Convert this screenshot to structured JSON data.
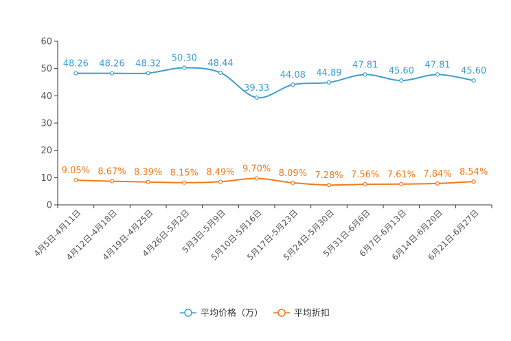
{
  "chart_data": {
    "type": "line",
    "title": "",
    "xlabel": "",
    "ylabel": "",
    "ylim": [
      0,
      60
    ],
    "yticks": [
      0,
      10,
      20,
      30,
      40,
      50,
      60
    ],
    "categories": [
      "4月5日-4月11日",
      "4月12日-4月18日",
      "4月19日-4月25日",
      "4月26日-5月2日",
      "5月3日-5月9日",
      "5月10日-5月16日",
      "5月17日-5月23日",
      "5月24日-5月30日",
      "5月31日-6月6日",
      "6月7日-6月13日",
      "6月14日-6月20日",
      "6月21日-6月27日"
    ],
    "series": [
      {
        "name": "平均价格（万）",
        "color": "#3a9fd0",
        "values": [
          48.26,
          48.26,
          48.32,
          50.3,
          48.44,
          39.33,
          44.08,
          44.89,
          47.81,
          45.6,
          47.81,
          45.6
        ],
        "labels": [
          "48.26",
          "48.26",
          "48.32",
          "50.30",
          "48.44",
          "39.33",
          "44.08",
          "44.89",
          "47.81",
          "45.60",
          "47.81",
          "45.60"
        ]
      },
      {
        "name": "平均折扣",
        "color": "#f07a1a",
        "values": [
          9.05,
          8.67,
          8.39,
          8.15,
          8.49,
          9.7,
          8.09,
          7.28,
          7.56,
          7.61,
          7.84,
          8.54
        ],
        "labels": [
          "9.05%",
          "8.67%",
          "8.39%",
          "8.15%",
          "8.49%",
          "9.70%",
          "8.09%",
          "7.28%",
          "7.56%",
          "7.61%",
          "7.84%",
          "8.54%"
        ]
      }
    ],
    "legend": "bottom-center",
    "grid": false
  }
}
